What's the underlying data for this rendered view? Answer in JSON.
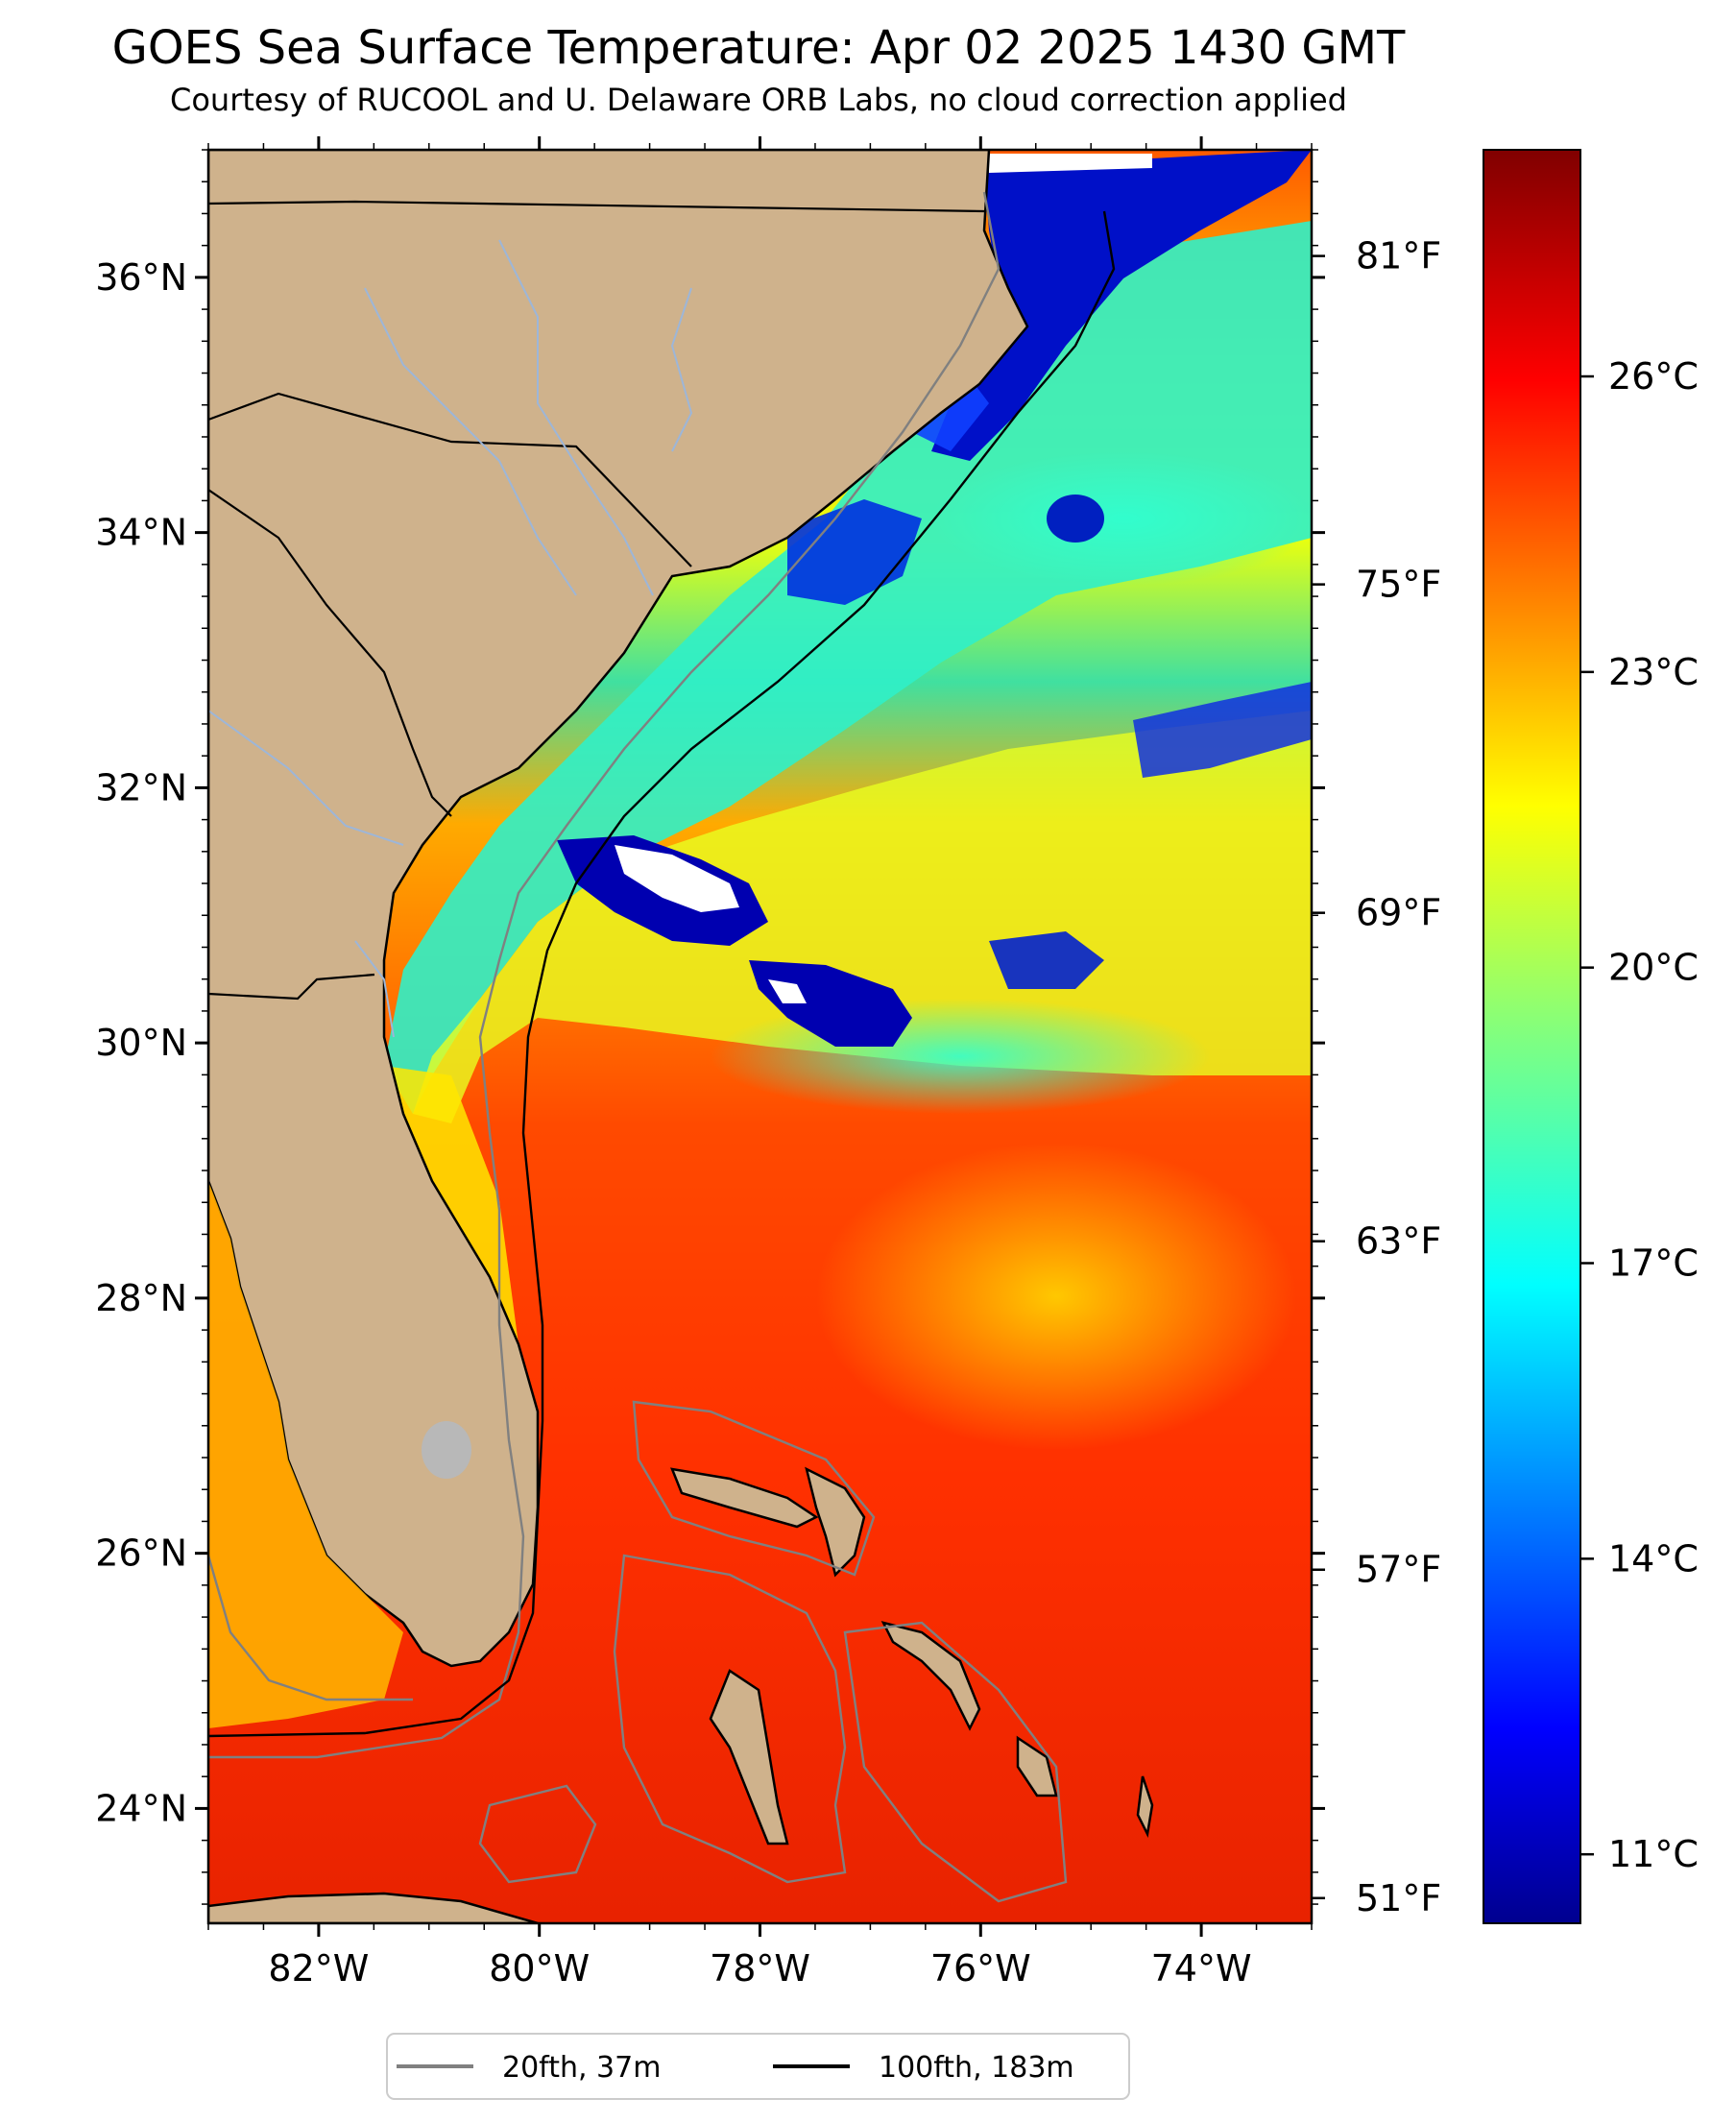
{
  "title": "GOES Sea Surface Temperature: Apr 02 2025 1430 GMT",
  "subtitle": "Courtesy of RUCOOL and U. Delaware ORB Labs, no cloud correction applied",
  "map": {
    "region": "US Southeast Atlantic coast, Florida, Bahamas",
    "lon_range": [
      -83,
      -73
    ],
    "lat_range": [
      23.1,
      37.0
    ],
    "lon_ticks": [
      {
        "value": -82,
        "label": "82°W"
      },
      {
        "value": -80,
        "label": "80°W"
      },
      {
        "value": -78,
        "label": "78°W"
      },
      {
        "value": -76,
        "label": "76°W"
      },
      {
        "value": -74,
        "label": "74°W"
      }
    ],
    "lat_ticks": [
      {
        "value": 24,
        "label": "24°N"
      },
      {
        "value": 26,
        "label": "26°N"
      },
      {
        "value": 28,
        "label": "28°N"
      },
      {
        "value": 30,
        "label": "30°N"
      },
      {
        "value": 32,
        "label": "32°N"
      },
      {
        "value": 34,
        "label": "34°N"
      },
      {
        "value": 36,
        "label": "36°N"
      }
    ],
    "colors": {
      "land": "#cfb28c",
      "rivers": "#9db6d8",
      "borders": "#000000",
      "cloud_mask": "#ffffff"
    }
  },
  "colorbar": {
    "colormap": "jet",
    "range_c": [
      10.3,
      28.3
    ],
    "celsius_ticks": [
      {
        "value": 11,
        "label": "11°C"
      },
      {
        "value": 14,
        "label": "14°C"
      },
      {
        "value": 17,
        "label": "17°C"
      },
      {
        "value": 20,
        "label": "20°C"
      },
      {
        "value": 23,
        "label": "23°C"
      },
      {
        "value": 26,
        "label": "26°C"
      }
    ],
    "fahrenheit_ticks": [
      {
        "value_f": 51,
        "label": "51°F"
      },
      {
        "value_f": 57,
        "label": "57°F"
      },
      {
        "value_f": 63,
        "label": "63°F"
      },
      {
        "value_f": 69,
        "label": "69°F"
      },
      {
        "value_f": 75,
        "label": "75°F"
      },
      {
        "value_f": 81,
        "label": "81°F"
      }
    ]
  },
  "legend": {
    "placement": "bottom-center",
    "items": [
      {
        "label": "20fth, 37m",
        "color": "#808080"
      },
      {
        "label": "100fth, 183m",
        "color": "#000000"
      }
    ]
  }
}
